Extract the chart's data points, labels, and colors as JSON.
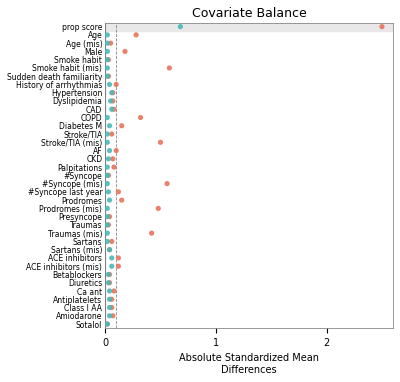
{
  "title": "Covariate Balance",
  "xlabel": "Absolute Standardized Mean\nDifferences",
  "categories": [
    "prop score",
    "Age",
    "Age (mis)",
    "Male",
    "Smoke habit",
    "Smoke habit (mis)",
    "Sudden death familiarity",
    "History of arrhythmias",
    "Hypertension",
    "Dyslipidemia",
    "CAD",
    "COPD",
    "Diabetes M",
    "Stroke/TIA",
    "Stroke/TIA (mis)",
    "AF",
    "CKD",
    "Palpitations",
    "#Syncope",
    "#Syncope (mis)",
    "#Syncope last year",
    "Prodromes",
    "Prodromes (mis)",
    "Presyncope",
    "Traumas",
    "Traumas (mis)",
    "Sartans",
    "Sartans (mis)",
    "ACE inhibitors",
    "ACE inhibitors (mis)",
    "Betablockers",
    "Diuretics",
    "Ca ant",
    "Antiplatelets",
    "Class I AA",
    "Amiodarone",
    "Sotalol"
  ],
  "before": [
    2.5,
    0.28,
    0.05,
    0.18,
    0.03,
    0.58,
    0.03,
    0.1,
    0.07,
    0.07,
    0.08,
    0.32,
    0.15,
    0.06,
    0.5,
    0.1,
    0.07,
    0.08,
    0.03,
    0.56,
    0.12,
    0.15,
    0.48,
    0.04,
    0.03,
    0.42,
    0.06,
    0.04,
    0.12,
    0.12,
    0.04,
    0.04,
    0.08,
    0.06,
    0.06,
    0.07,
    0.02
  ],
  "after": [
    0.68,
    0.02,
    0.02,
    0.02,
    0.02,
    0.02,
    0.02,
    0.04,
    0.06,
    0.05,
    0.06,
    0.02,
    0.04,
    0.02,
    0.02,
    0.04,
    0.03,
    0.02,
    0.02,
    0.02,
    0.03,
    0.04,
    0.02,
    0.02,
    0.02,
    0.02,
    0.02,
    0.04,
    0.06,
    0.06,
    0.03,
    0.03,
    0.04,
    0.04,
    0.04,
    0.04,
    0.02
  ],
  "before_color": "#E8735A",
  "after_color": "#47B8B8",
  "xlim": [
    0,
    2.6
  ],
  "xticks": [
    0,
    1,
    2
  ],
  "vline_x": 0.0,
  "dashed_vline_x": 0.1,
  "title_fontsize": 9,
  "label_fontsize": 5.5,
  "tick_fontsize": 7,
  "marker_size": 14,
  "prop_score_band_color": "#e8e8e8"
}
